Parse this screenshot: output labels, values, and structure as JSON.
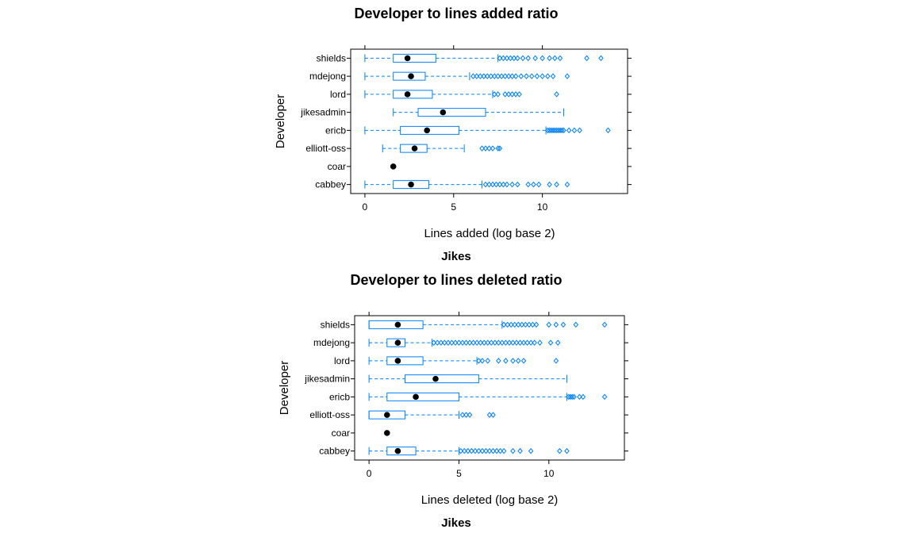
{
  "colors": {
    "box": "#0080ff",
    "median": "#000000",
    "frame": "#000000"
  },
  "chart_data": [
    {
      "type": "boxplot",
      "title": "Developer to lines added ratio",
      "subtitle": "Jikes",
      "xlabel": "Lines added (log base 2)",
      "ylabel": "Developer",
      "xlim": [
        -0.8,
        14.8
      ],
      "xticks": [
        0,
        5,
        10
      ],
      "categories": [
        "cabbey",
        "coar",
        "elliott-oss",
        "ericb",
        "jikesadmin",
        "lord",
        "mdejong",
        "shields"
      ],
      "series": [
        {
          "min": 0,
          "q1": 1.6,
          "median": 2.6,
          "q3": 3.6,
          "max": 6.6,
          "outliers": [
            6.8,
            7.0,
            7.2,
            7.4,
            7.6,
            7.8,
            8.0,
            8.3,
            8.6,
            9.2,
            9.5,
            9.8,
            10.4,
            10.8,
            11.4
          ]
        },
        {
          "min": 1.6,
          "q1": 1.6,
          "median": 1.6,
          "q3": 1.6,
          "max": 1.6,
          "outliers": []
        },
        {
          "min": 1.0,
          "q1": 2.0,
          "median": 2.8,
          "q3": 3.5,
          "max": 5.6,
          "outliers": [
            6.6,
            6.8,
            7.0,
            7.2,
            7.5,
            7.6
          ]
        },
        {
          "min": 0,
          "q1": 2.0,
          "median": 3.5,
          "q3": 5.3,
          "max": 10.2,
          "outliers": [
            10.3,
            10.4,
            10.5,
            10.6,
            10.7,
            10.8,
            10.9,
            11.0,
            11.1,
            11.2,
            11.5,
            11.8,
            12.1,
            13.7
          ]
        },
        {
          "min": 1.6,
          "q1": 3.0,
          "median": 4.4,
          "q3": 6.8,
          "max": 11.2,
          "outliers": []
        },
        {
          "min": 0,
          "q1": 1.6,
          "median": 2.4,
          "q3": 3.8,
          "max": 7.2,
          "outliers": [
            7.3,
            7.5,
            7.9,
            8.1,
            8.3,
            8.5,
            8.7,
            10.8
          ]
        },
        {
          "min": 0,
          "q1": 1.6,
          "median": 2.6,
          "q3": 3.4,
          "max": 5.9,
          "outliers": [
            6.1,
            6.3,
            6.5,
            6.7,
            6.9,
            7.1,
            7.3,
            7.5,
            7.7,
            7.9,
            8.1,
            8.3,
            8.5,
            8.8,
            9.1,
            9.4,
            9.7,
            10.0,
            10.3,
            10.6,
            11.4
          ]
        },
        {
          "min": 0,
          "q1": 1.6,
          "median": 2.4,
          "q3": 4.0,
          "max": 7.5,
          "outliers": [
            7.6,
            7.8,
            8.0,
            8.2,
            8.4,
            8.6,
            8.9,
            9.2,
            9.6,
            10.0,
            10.4,
            10.7,
            11.0,
            12.5,
            13.3
          ]
        }
      ]
    },
    {
      "type": "boxplot",
      "title": "Developer to lines deleted ratio",
      "subtitle": "Jikes",
      "xlabel": "Lines deleted (log base 2)",
      "ylabel": "Developer",
      "xlim": [
        -0.8,
        14.2
      ],
      "xticks": [
        0,
        5,
        10
      ],
      "categories": [
        "cabbey",
        "coar",
        "elliott-oss",
        "ericb",
        "jikesadmin",
        "lord",
        "mdejong",
        "shields"
      ],
      "series": [
        {
          "min": 0,
          "q1": 1.0,
          "median": 1.6,
          "q3": 2.6,
          "max": 5.0,
          "outliers": [
            5.1,
            5.3,
            5.5,
            5.7,
            5.9,
            6.1,
            6.3,
            6.5,
            6.7,
            6.9,
            7.1,
            7.3,
            7.5,
            8.0,
            8.4,
            9.0,
            10.6,
            11.0
          ]
        },
        {
          "min": 1.0,
          "q1": 1.0,
          "median": 1.0,
          "q3": 1.0,
          "max": 1.0,
          "outliers": []
        },
        {
          "min": 0,
          "q1": 0,
          "median": 1.0,
          "q3": 2.0,
          "max": 5.0,
          "outliers": [
            5.2,
            5.4,
            5.6,
            6.7,
            6.9
          ]
        },
        {
          "min": 0,
          "q1": 1.0,
          "median": 2.6,
          "q3": 5.0,
          "max": 11.0,
          "outliers": [
            11.1,
            11.2,
            11.3,
            11.4,
            11.7,
            11.9,
            13.1
          ]
        },
        {
          "min": 0,
          "q1": 2.0,
          "median": 3.7,
          "q3": 6.1,
          "max": 11.0,
          "outliers": []
        },
        {
          "min": 0,
          "q1": 1.0,
          "median": 1.6,
          "q3": 3.0,
          "max": 6.0,
          "outliers": [
            6.1,
            6.3,
            6.6,
            7.2,
            7.6,
            8.0,
            8.3,
            8.6,
            10.4
          ]
        },
        {
          "min": 0,
          "q1": 1.0,
          "median": 1.6,
          "q3": 2.0,
          "max": 3.5,
          "outliers": [
            3.6,
            3.8,
            4.0,
            4.2,
            4.4,
            4.6,
            4.8,
            5.0,
            5.2,
            5.4,
            5.6,
            5.8,
            6.0,
            6.2,
            6.4,
            6.6,
            6.8,
            7.0,
            7.2,
            7.4,
            7.6,
            7.8,
            8.0,
            8.2,
            8.4,
            8.6,
            8.8,
            9.0,
            9.2,
            9.5,
            10.1,
            10.5
          ]
        },
        {
          "min": 0,
          "q1": 0,
          "median": 1.6,
          "q3": 3.0,
          "max": 7.4,
          "outliers": [
            7.5,
            7.7,
            7.9,
            8.1,
            8.3,
            8.5,
            8.7,
            8.9,
            9.1,
            9.3,
            10.0,
            10.4,
            10.8,
            11.5,
            13.1
          ]
        }
      ]
    }
  ]
}
